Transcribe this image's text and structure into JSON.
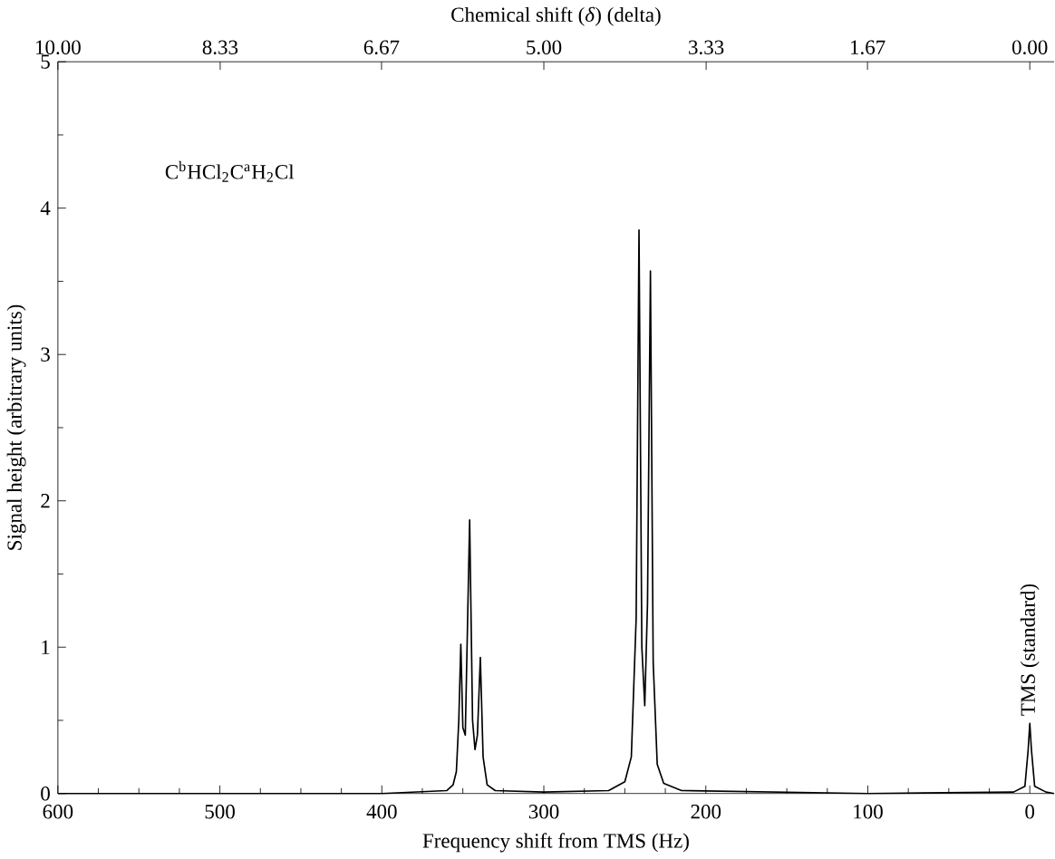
{
  "chart_data": {
    "type": "line",
    "xlabel": "Frequency shift from TMS (Hz)",
    "ylabel": "Signal height (arbitrary units)",
    "x2label": "Chemical shift (*δ*) (delta)",
    "xlim": [
      600,
      -15
    ],
    "ylim": [
      0,
      5
    ],
    "x2lim": [
      10,
      -0.25
    ],
    "xticks": [
      600,
      500,
      400,
      300,
      200,
      100,
      0
    ],
    "yticks": [
      0,
      1,
      2,
      3,
      4,
      5
    ],
    "x2ticks": [
      {
        "value": 10,
        "label": "10.00"
      },
      {
        "value": 8.33,
        "label": "8.33"
      },
      {
        "value": 6.67,
        "label": "6.67"
      },
      {
        "value": 5,
        "label": "5.00"
      },
      {
        "value": 3.33,
        "label": "3.33"
      },
      {
        "value": 1.67,
        "label": "1.67"
      },
      {
        "value": 0,
        "label": "0.00"
      }
    ],
    "x": [
      600,
      400,
      360,
      356,
      354,
      352.5,
      351.25,
      350,
      348.5,
      345.8,
      344,
      342.5,
      341,
      339.2,
      337.5,
      335,
      330,
      300,
      260,
      250,
      246,
      243,
      241.25,
      239.5,
      237.7,
      236,
      234.2,
      232.5,
      230,
      226,
      215,
      100,
      10,
      3,
      1,
      0,
      -1,
      -3,
      -10,
      -15
    ],
    "series": [
      {
        "color": "#000000",
        "values": [
          0,
          0,
          0.02,
          0.06,
          0.15,
          0.5,
          1.02,
          0.45,
          0.4,
          1.87,
          0.5,
          0.3,
          0.4,
          0.93,
          0.25,
          0.06,
          0.02,
          0.01,
          0.02,
          0.08,
          0.25,
          1.2,
          3.85,
          1.0,
          0.6,
          1.3,
          3.57,
          0.9,
          0.2,
          0.07,
          0.02,
          0,
          0.01,
          0.05,
          0.3,
          0.48,
          0.3,
          0.05,
          0.01,
          0
        ]
      }
    ],
    "annotations": [
      "C$^{b}$HCl$_{2}$C$^{a}$H$_{2}$Cl",
      {
        "text": "TMS (standard)",
        "x": 0,
        "y": 0.48
      }
    ]
  }
}
